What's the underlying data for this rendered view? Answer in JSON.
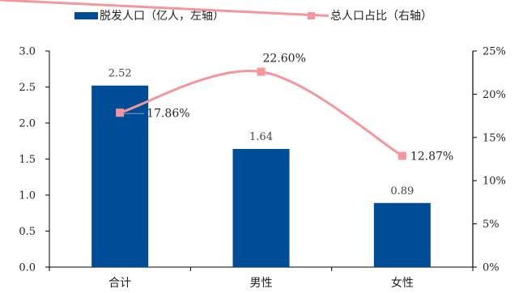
{
  "chart_data": {
    "type": "bar",
    "categories": [
      "合计",
      "男性",
      "女性"
    ],
    "series": [
      {
        "name": "脱发人口（亿人，左轴）",
        "type": "bar",
        "axis": "left",
        "color": "#004C97",
        "values": [
          2.52,
          1.64,
          0.89
        ],
        "labels": [
          "2.52",
          "1.64",
          "0.89"
        ]
      },
      {
        "name": "总人口占比（右轴）",
        "type": "line",
        "axis": "right",
        "color": "#F4969C",
        "values": [
          17.86,
          22.6,
          12.87
        ],
        "labels": [
          "17.86%",
          "22.60%",
          "12.87%"
        ]
      }
    ],
    "y_left": {
      "range": [
        0,
        3.0
      ],
      "ticks": [
        "0.0",
        "0.5",
        "1.0",
        "1.5",
        "2.0",
        "2.5",
        "3.0"
      ]
    },
    "y_right": {
      "range": [
        0,
        25
      ],
      "ticks": [
        "0%",
        "5%",
        "10%",
        "15%",
        "20%",
        "25%"
      ]
    },
    "grid": false,
    "legend_position": "top"
  }
}
